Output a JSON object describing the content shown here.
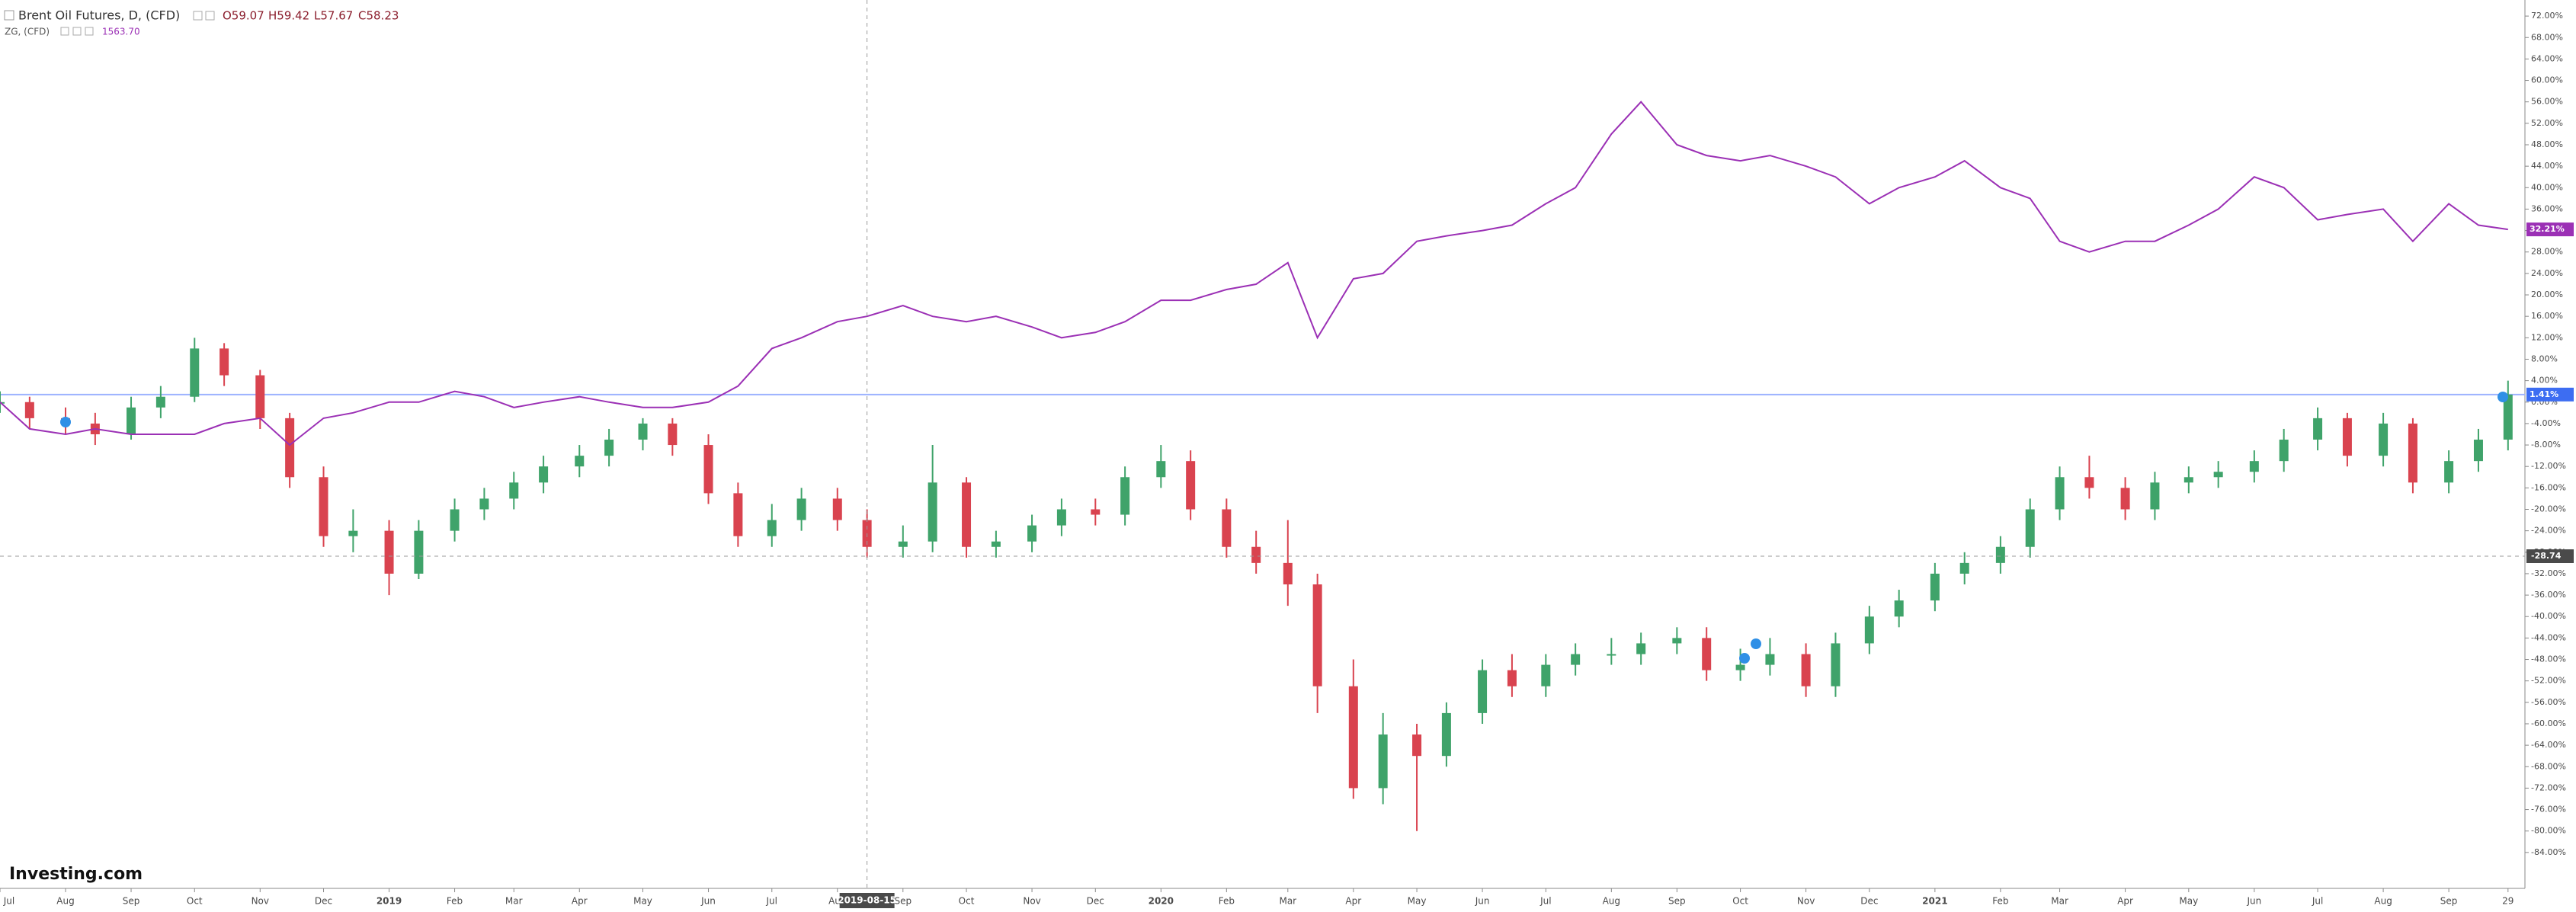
{
  "chart_data": {
    "type": "candlestick",
    "watermark": "Investing.com",
    "x": [
      "2018-07-01",
      "2018-07-15",
      "2018-08-01",
      "2018-08-15",
      "2018-09-01",
      "2018-09-15",
      "2018-10-01",
      "2018-10-15",
      "2018-11-01",
      "2018-11-15",
      "2018-12-01",
      "2018-12-15",
      "2019-01-01",
      "2019-01-15",
      "2019-02-01",
      "2019-02-15",
      "2019-03-01",
      "2019-03-15",
      "2019-04-01",
      "2019-04-15",
      "2019-05-01",
      "2019-05-15",
      "2019-06-01",
      "2019-06-15",
      "2019-07-01",
      "2019-07-15",
      "2019-08-01",
      "2019-08-15",
      "2019-09-01",
      "2019-09-15",
      "2019-10-01",
      "2019-10-15",
      "2019-11-01",
      "2019-11-15",
      "2019-12-01",
      "2019-12-15",
      "2020-01-01",
      "2020-01-15",
      "2020-02-01",
      "2020-02-15",
      "2020-03-01",
      "2020-03-15",
      "2020-04-01",
      "2020-04-15",
      "2020-05-01",
      "2020-05-15",
      "2020-06-01",
      "2020-06-15",
      "2020-07-01",
      "2020-07-15",
      "2020-08-01",
      "2020-08-15",
      "2020-09-01",
      "2020-09-15",
      "2020-10-01",
      "2020-10-15",
      "2020-11-01",
      "2020-11-15",
      "2020-12-01",
      "2020-12-15",
      "2021-01-01",
      "2021-01-15",
      "2021-02-01",
      "2021-02-15",
      "2021-03-01",
      "2021-03-15",
      "2021-04-01",
      "2021-04-15",
      "2021-05-01",
      "2021-05-15",
      "2021-06-01",
      "2021-06-15",
      "2021-07-01",
      "2021-07-15",
      "2021-08-01",
      "2021-08-15",
      "2021-09-01",
      "2021-09-15",
      "2021-09-29"
    ],
    "series": [
      {
        "name": "Brent Oil Futures, D, (CFD)",
        "type": "candlestick",
        "up_color": "#3fa36a",
        "down_color": "#d9434f",
        "price_line_color": "#9db2ff",
        "label_color": "#3d6df2",
        "ohlc_labels": [
          "O59.07",
          "H59.42",
          "L57.67",
          "C58.23"
        ],
        "last_value_label": "1.41%",
        "open": [
          0,
          0,
          -3,
          -4,
          -6,
          -1,
          1,
          10,
          5,
          -3,
          -14,
          -25,
          -24,
          -32,
          -24,
          -20,
          -18,
          -15,
          -12,
          -10,
          -7,
          -4,
          -8,
          -17,
          -25,
          -22,
          -18,
          -22,
          -27,
          -26,
          -15,
          -27,
          -26,
          -23,
          -20,
          -21,
          -14,
          -11,
          -20,
          -27,
          -30,
          -34,
          -53,
          -72,
          -62,
          -66,
          -58,
          -50,
          -53,
          -49,
          -47,
          -47,
          -45,
          -44,
          -50,
          -49,
          -47,
          -53,
          -45,
          -40,
          -37,
          -32,
          -30,
          -27,
          -20,
          -14,
          -16,
          -20,
          -15,
          -14,
          -13,
          -11,
          -7,
          -3,
          -10,
          -4,
          -15,
          -11,
          -7
        ],
        "high": [
          2,
          1,
          -1,
          -2,
          1,
          3,
          12,
          11,
          6,
          -2,
          -12,
          -20,
          -22,
          -22,
          -18,
          -16,
          -13,
          -10,
          -8,
          -5,
          -3,
          -3,
          -6,
          -15,
          -19,
          -16,
          -16,
          -20,
          -23,
          -8,
          -14,
          -24,
          -21,
          -18,
          -18,
          -12,
          -8,
          -9,
          -18,
          -24,
          -22,
          -32,
          -48,
          -58,
          -60,
          -56,
          -48,
          -47,
          -47,
          -45,
          -44,
          -43,
          -42,
          -42,
          -46,
          -44,
          -45,
          -43,
          -38,
          -35,
          -30,
          -28,
          -25,
          -18,
          -12,
          -10,
          -14,
          -13,
          -12,
          -11,
          -9,
          -5,
          -1,
          -2,
          -2,
          -3,
          -9,
          -5,
          4
        ],
        "low": [
          -2,
          -5,
          -6,
          -8,
          -7,
          -3,
          0,
          3,
          -5,
          -16,
          -27,
          -28,
          -36,
          -33,
          -26,
          -22,
          -20,
          -17,
          -14,
          -12,
          -9,
          -10,
          -19,
          -27,
          -27,
          -24,
          -24,
          -29,
          -29,
          -28,
          -29,
          -29,
          -28,
          -25,
          -23,
          -23,
          -16,
          -22,
          -29,
          -32,
          -38,
          -58,
          -74,
          -75,
          -80,
          -68,
          -60,
          -55,
          -55,
          -51,
          -49,
          -49,
          -47,
          -52,
          -52,
          -51,
          -55,
          -55,
          -47,
          -42,
          -39,
          -34,
          -32,
          -29,
          -22,
          -18,
          -22,
          -22,
          -17,
          -16,
          -15,
          -13,
          -9,
          -12,
          -12,
          -17,
          -17,
          -13,
          -9
        ],
        "close": [
          0,
          -3,
          -4,
          -6,
          -1,
          1,
          10,
          5,
          -3,
          -14,
          -25,
          -24,
          -32,
          -24,
          -20,
          -18,
          -15,
          -12,
          -10,
          -7,
          -4,
          -8,
          -17,
          -25,
          -22,
          -18,
          -22,
          -27,
          -26,
          -15,
          -27,
          -26,
          -23,
          -20,
          -21,
          -14,
          -11,
          -20,
          -27,
          -30,
          -34,
          -53,
          -72,
          -62,
          -66,
          -58,
          -50,
          -53,
          -49,
          -47,
          -47,
          -45,
          -44,
          -50,
          -49,
          -47,
          -53,
          -45,
          -40,
          -37,
          -32,
          -30,
          -27,
          -20,
          -14,
          -16,
          -20,
          -15,
          -14,
          -13,
          -11,
          -7,
          -3,
          -10,
          -4,
          -15,
          -11,
          -7,
          1.41
        ]
      },
      {
        "name": "ZG, (CFD)",
        "type": "line",
        "color": "#9b30b5",
        "price_label": "1563.70",
        "last_value_label": "32.21%",
        "values": [
          0,
          -5,
          -6,
          -5,
          -6,
          -6,
          -6,
          -4,
          -3,
          -8,
          -3,
          -2,
          0,
          0,
          2,
          1,
          -1,
          0,
          1,
          0,
          -1,
          -1,
          0,
          3,
          10,
          12,
          15,
          16,
          18,
          16,
          15,
          16,
          14,
          12,
          13,
          15,
          19,
          19,
          21,
          22,
          26,
          12,
          23,
          24,
          30,
          31,
          32,
          33,
          37,
          40,
          50,
          56,
          48,
          46,
          45,
          46,
          44,
          42,
          37,
          40,
          42,
          45,
          40,
          38,
          30,
          28,
          30,
          30,
          33,
          36,
          42,
          40,
          34,
          35,
          36,
          30,
          37,
          33,
          32.21
        ]
      }
    ],
    "xlim": [
      "2018-07-01",
      "2021-10-07"
    ],
    "xticks": [
      {
        "value": "2018-07-01",
        "label": "Jul"
      },
      {
        "value": "2018-08-01",
        "label": "Aug"
      },
      {
        "value": "2018-09-01",
        "label": "Sep"
      },
      {
        "value": "2018-10-01",
        "label": "Oct"
      },
      {
        "value": "2018-11-01",
        "label": "Nov"
      },
      {
        "value": "2018-12-01",
        "label": "Dec"
      },
      {
        "value": "2019-01-01",
        "label": "2019"
      },
      {
        "value": "2019-02-01",
        "label": "Feb"
      },
      {
        "value": "2019-03-01",
        "label": "Mar"
      },
      {
        "value": "2019-04-01",
        "label": "Apr"
      },
      {
        "value": "2019-05-01",
        "label": "May"
      },
      {
        "value": "2019-06-01",
        "label": "Jun"
      },
      {
        "value": "2019-07-01",
        "label": "Jul"
      },
      {
        "value": "2019-08-01",
        "label": "Aug"
      },
      {
        "value": "2019-09-01",
        "label": "Sep"
      },
      {
        "value": "2019-10-01",
        "label": "Oct"
      },
      {
        "value": "2019-11-01",
        "label": "Nov"
      },
      {
        "value": "2019-12-01",
        "label": "Dec"
      },
      {
        "value": "2020-01-01",
        "label": "2020"
      },
      {
        "value": "2020-02-01",
        "label": "Feb"
      },
      {
        "value": "2020-03-01",
        "label": "Mar"
      },
      {
        "value": "2020-04-01",
        "label": "Apr"
      },
      {
        "value": "2020-05-01",
        "label": "May"
      },
      {
        "value": "2020-06-01",
        "label": "Jun"
      },
      {
        "value": "2020-07-01",
        "label": "Jul"
      },
      {
        "value": "2020-08-01",
        "label": "Aug"
      },
      {
        "value": "2020-09-01",
        "label": "Sep"
      },
      {
        "value": "2020-10-01",
        "label": "Oct"
      },
      {
        "value": "2020-11-01",
        "label": "Nov"
      },
      {
        "value": "2020-12-01",
        "label": "Dec"
      },
      {
        "value": "2021-01-01",
        "label": "2021"
      },
      {
        "value": "2021-02-01",
        "label": "Feb"
      },
      {
        "value": "2021-03-01",
        "label": "Mar"
      },
      {
        "value": "2021-04-01",
        "label": "Apr"
      },
      {
        "value": "2021-05-01",
        "label": "May"
      },
      {
        "value": "2021-06-01",
        "label": "Jun"
      },
      {
        "value": "2021-07-01",
        "label": "Jul"
      },
      {
        "value": "2021-08-01",
        "label": "Aug"
      },
      {
        "value": "2021-09-01",
        "label": "Sep"
      },
      {
        "value": "2021-09-29",
        "label": "29"
      }
    ],
    "ylim": [
      -90.7,
      75
    ],
    "yticks": [
      {
        "value": 72,
        "label": "72.00%"
      },
      {
        "value": 68,
        "label": "68.00%"
      },
      {
        "value": 64,
        "label": "64.00%"
      },
      {
        "value": 60,
        "label": "60.00%"
      },
      {
        "value": 56,
        "label": "56.00%"
      },
      {
        "value": 52,
        "label": "52.00%"
      },
      {
        "value": 48,
        "label": "48.00%"
      },
      {
        "value": 44,
        "label": "44.00%"
      },
      {
        "value": 40,
        "label": "40.00%"
      },
      {
        "value": 36,
        "label": "36.00%"
      },
      {
        "value": 32,
        "label": "32.00%"
      },
      {
        "value": 28,
        "label": "28.00%"
      },
      {
        "value": 24,
        "label": "24.00%"
      },
      {
        "value": 20,
        "label": "20.00%"
      },
      {
        "value": 16,
        "label": "16.00%"
      },
      {
        "value": 12,
        "label": "12.00%"
      },
      {
        "value": 8,
        "label": "8.00%"
      },
      {
        "value": 4,
        "label": "4.00%"
      },
      {
        "value": 0,
        "label": "0.00%"
      },
      {
        "value": -4,
        "label": "-4.00%"
      },
      {
        "value": -8,
        "label": "-8.00%"
      },
      {
        "value": -12,
        "label": "-12.00%"
      },
      {
        "value": -16,
        "label": "-16.00%"
      },
      {
        "value": -20,
        "label": "-20.00%"
      },
      {
        "value": -24,
        "label": "-24.00%"
      },
      {
        "value": -28,
        "label": "-28.00%"
      },
      {
        "value": -32,
        "label": "-32.00%"
      },
      {
        "value": -36,
        "label": "-36.00%"
      },
      {
        "value": -40,
        "label": "-40.00%"
      },
      {
        "value": -44,
        "label": "-44.00%"
      },
      {
        "value": -48,
        "label": "-48.00%"
      },
      {
        "value": -52,
        "label": "-52.00%"
      },
      {
        "value": -56,
        "label": "-56.00%"
      },
      {
        "value": -60,
        "label": "-60.00%"
      },
      {
        "value": -64,
        "label": "-64.00%"
      },
      {
        "value": -68,
        "label": "-68.00%"
      },
      {
        "value": -72,
        "label": "-72.00%"
      },
      {
        "value": -76,
        "label": "-76.00%"
      },
      {
        "value": -80,
        "label": "-80.00%"
      },
      {
        "value": -84,
        "label": "-84.00%"
      }
    ],
    "crosshair": {
      "x": "2019-08-15",
      "y": -28.74
    }
  }
}
